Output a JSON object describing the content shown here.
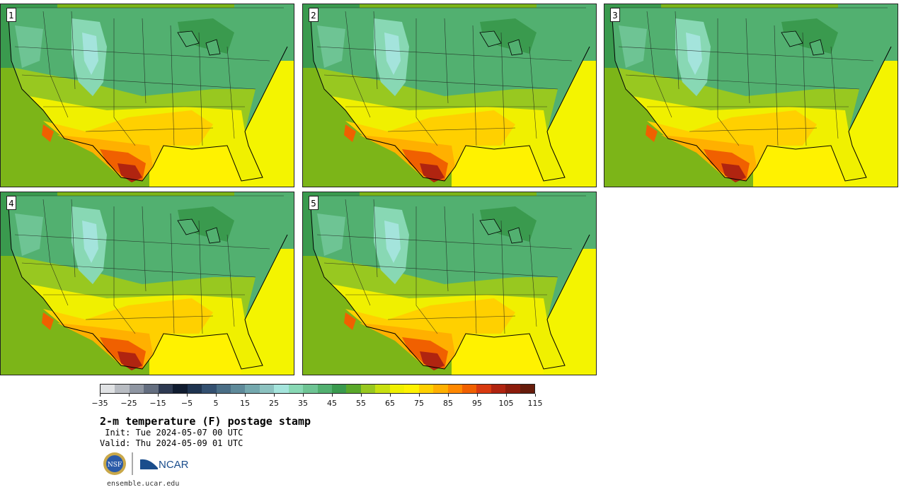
{
  "panels": [
    {
      "label": "1"
    },
    {
      "label": "2"
    },
    {
      "label": "3"
    },
    {
      "label": "4"
    },
    {
      "label": "5"
    }
  ],
  "colorbar": {
    "colors": [
      "#e0e2e4",
      "#b8bcc2",
      "#8f96a2",
      "#646e80",
      "#2e3a52",
      "#101c30",
      "#1f3450",
      "#335070",
      "#4a6e86",
      "#5e8a9a",
      "#74a8ae",
      "#8cc2c0",
      "#a4e4dc",
      "#88d8b4",
      "#6ec494",
      "#52b070",
      "#3a9a4e",
      "#5aa82a",
      "#98c820",
      "#c8e010",
      "#f0f000",
      "#fff200",
      "#ffd000",
      "#ffb000",
      "#ff8800",
      "#f06000",
      "#d83a10",
      "#b02410",
      "#8c1c0c",
      "#661c0c"
    ],
    "tick_labels": [
      "−35",
      "−25",
      "−15",
      "−5",
      "5",
      "15",
      "25",
      "35",
      "45",
      "55",
      "65",
      "75",
      "85",
      "95",
      "105",
      "115"
    ]
  },
  "title": "2-m temperature (F) postage stamp",
  "init": " Init: Tue 2024-05-07 00 UTC",
  "valid": "Valid: Thu 2024-05-09 01 UTC",
  "logos": {
    "nsf": "NSF",
    "ncar": "NCAR"
  },
  "site": "ensemble.ucar.edu"
}
